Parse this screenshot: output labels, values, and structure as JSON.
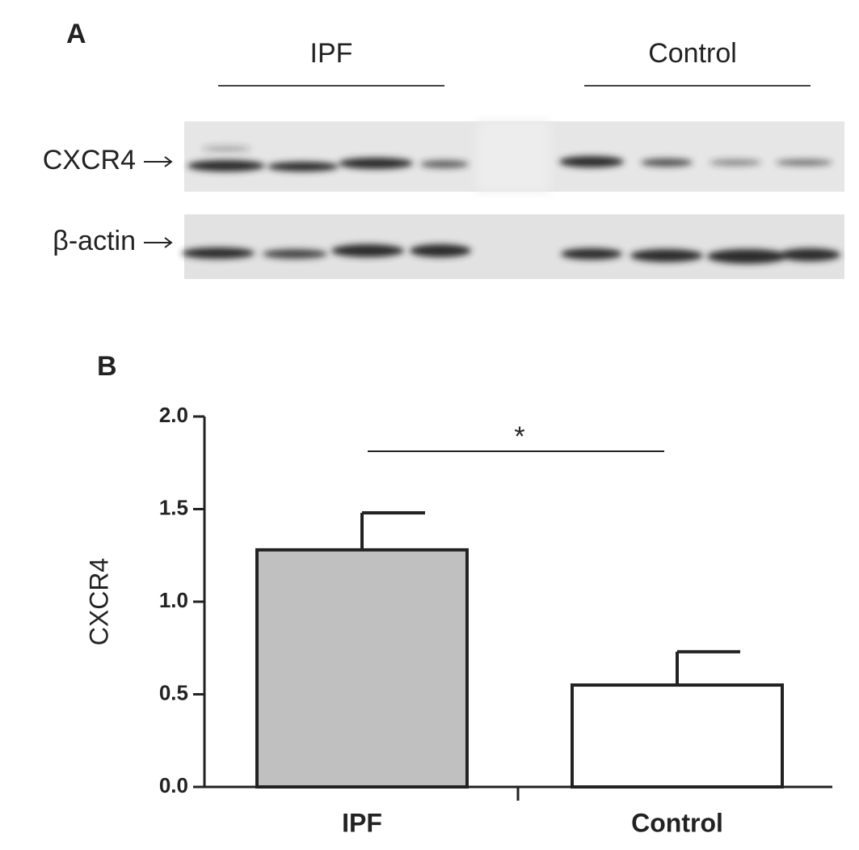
{
  "panel_a": {
    "label": "A",
    "groups": [
      "IPF",
      "Control"
    ],
    "rows": [
      "CXCR4",
      "β-actin"
    ]
  },
  "chart_data": {
    "type": "bar",
    "panel_label": "B",
    "ylabel": "CXCR4",
    "categories": [
      "IPF",
      "Control"
    ],
    "values": [
      1.28,
      0.55
    ],
    "errors": [
      0.2,
      0.18
    ],
    "colors": [
      "#c0c0c0",
      "#ffffff"
    ],
    "ylim": [
      0,
      2.0
    ],
    "yticks": [
      {
        "value": 0,
        "label": "0.0"
      },
      {
        "value": 0.5,
        "label": "0.5"
      },
      {
        "value": 1.0,
        "label": "1.0"
      },
      {
        "value": 1.5,
        "label": "1.5"
      },
      {
        "value": 2.0,
        "label": "2.0"
      }
    ],
    "significance": {
      "pair": [
        0,
        1
      ],
      "label": "*"
    }
  }
}
